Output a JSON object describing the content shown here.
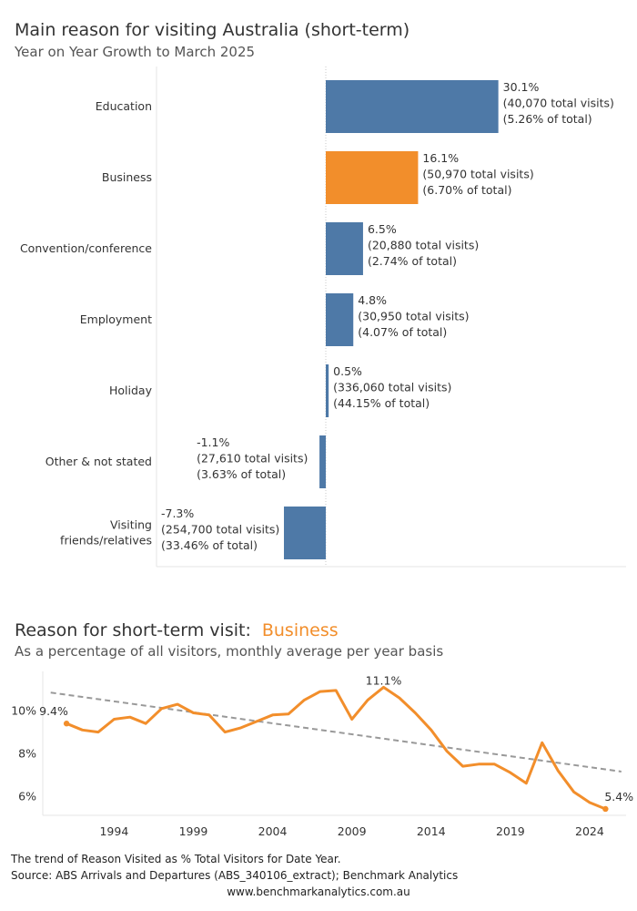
{
  "chart_data": [
    {
      "type": "bar",
      "orientation": "horizontal",
      "title": "Main reason for visiting Australia (short-term)",
      "subtitle": "Year on Year Growth to March 2025",
      "categories": [
        "Education",
        "Business",
        "Convention/conference",
        "Employment",
        "Holiday",
        "Other & not stated",
        "Visiting friends/relatives"
      ],
      "values": [
        30.1,
        16.1,
        6.5,
        4.8,
        0.5,
        -1.1,
        -7.3
      ],
      "highlight": "Business",
      "colors": {
        "default": "#4E79A7",
        "highlight": "#F28E2B"
      },
      "label_lines": [
        [
          "30.1%",
          "(40,070 total visits)",
          "(5.26% of total)"
        ],
        [
          "16.1%",
          "(50,970 total visits)",
          "(6.70% of total)"
        ],
        [
          "6.5%",
          "(20,880 total visits)",
          "(2.74% of total)"
        ],
        [
          "4.8%",
          "(30,950 total visits)",
          "(4.07% of total)"
        ],
        [
          "0.5%",
          "(336,060 total visits)",
          "(44.15% of total)"
        ],
        [
          "-1.1%",
          "(27,610 total visits)",
          "(3.63% of total)"
        ],
        [
          "-7.3%",
          "(254,700 total visits)",
          "(33.46% of total)"
        ]
      ],
      "grid": false
    },
    {
      "type": "line",
      "title": "Reason for short-term visit:",
      "title_highlight": "Business",
      "subtitle": "As a percentage of all visitors, monthly average per year basis",
      "x": [
        1991,
        1992,
        1993,
        1994,
        1995,
        1996,
        1997,
        1998,
        1999,
        2000,
        2001,
        2002,
        2003,
        2004,
        2005,
        2006,
        2007,
        2008,
        2009,
        2010,
        2011,
        2012,
        2013,
        2014,
        2015,
        2016,
        2017,
        2018,
        2019,
        2020,
        2021,
        2022,
        2023,
        2024,
        2025
      ],
      "series": [
        {
          "color": "#F28E2B",
          "values": [
            9.4,
            9.1,
            9.0,
            9.6,
            9.7,
            9.4,
            10.1,
            10.3,
            9.9,
            9.8,
            9.0,
            9.2,
            9.5,
            9.8,
            9.85,
            10.5,
            10.9,
            10.95,
            9.6,
            10.5,
            11.1,
            10.6,
            9.9,
            9.1,
            8.1,
            7.4,
            7.5,
            7.5,
            7.1,
            6.6,
            8.5,
            7.2,
            6.2,
            5.7,
            5.4
          ]
        }
      ],
      "trendline": {
        "color": "#999999",
        "style": "dashed",
        "start": [
          1990,
          10.85
        ],
        "end": [
          2026,
          7.15
        ]
      },
      "point_labels": [
        "9.4%",
        "11.1%",
        "5.4%"
      ],
      "x_ticks": [
        "1994",
        "1999",
        "2004",
        "2009",
        "2014",
        "2019",
        "2024"
      ],
      "y_ticks": [
        "6%",
        "8%",
        "10%"
      ],
      "xlim": [
        1989.5,
        2026.3
      ],
      "ylim": [
        5.1,
        11.5
      ],
      "grid": false
    }
  ],
  "footer": {
    "note": "The trend of Reason Visited as % Total Visitors for Date Year.",
    "source": "Source: ABS Arrivals and Departures (ABS_340106_extract); Benchmark Analytics",
    "url": "www.benchmarkanalytics.com.au"
  }
}
